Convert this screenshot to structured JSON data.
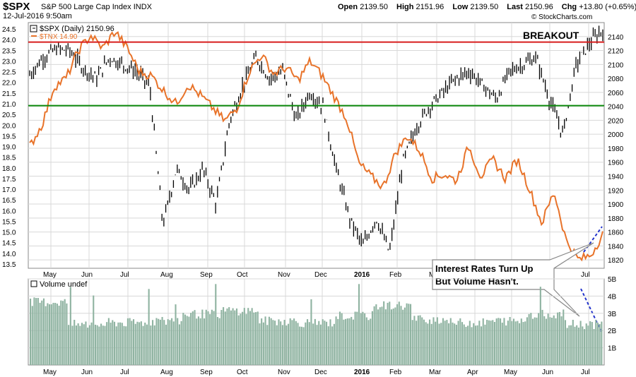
{
  "header": {
    "symbol": "$SPX",
    "name": "S&P 500 Large Cap Index",
    "exchange": "INDX",
    "datetime": "12-Jul-2016 9:50am",
    "open_label": "Open",
    "open": "2139.50",
    "high_label": "High",
    "high": "2151.96",
    "low_label": "Low",
    "low": "2139.50",
    "last_label": "Last",
    "last": "2150.96",
    "chg_label": "Chg",
    "chg": "+13.80 (+0.65%)",
    "up_arrow": "▲",
    "credit": "© StockCharts.com"
  },
  "colors": {
    "price": "#000000",
    "tnx": "#e8732a",
    "resistance": "#d81d1d",
    "support": "#0d8a0d",
    "volume": "#8fb3a1",
    "trend": "#2233cc",
    "grid": "#d8d8d8"
  },
  "annotations": {
    "breakout": "BREAKOUT",
    "callout_line1": "Interest Rates Turn Up",
    "callout_line2": "But Volume Hasn't."
  },
  "chart_data": [
    {
      "type": "line",
      "title": "$SPX (Daily) 2150.96",
      "legend": [
        {
          "name": "$SPX (Daily) 2150.96",
          "color": "#000000"
        },
        {
          "name": "$TNX 14.90",
          "color": "#e8732a"
        }
      ],
      "x_tick_labels": [
        "May",
        "Jun",
        "Jul",
        "Aug",
        "Sep",
        "Oct",
        "Nov",
        "Dec",
        "2016",
        "Feb",
        "Mar",
        "Apr",
        "May",
        "Jun",
        "Jul"
      ],
      "y_right_ticks": [
        "1820",
        "1840",
        "1860",
        "1880",
        "1900",
        "1920",
        "1940",
        "1960",
        "1980",
        "2000",
        "2020",
        "2040",
        "2060",
        "2080",
        "2100",
        "2120",
        "2140"
      ],
      "y_left_ticks": [
        "13.5",
        "14.0",
        "14.5",
        "15.0",
        "15.5",
        "16.0",
        "16.5",
        "17.0",
        "17.5",
        "18.0",
        "18.5",
        "19.0",
        "19.5",
        "20.0",
        "20.5",
        "21.0",
        "21.5",
        "22.0",
        "22.5",
        "23.0",
        "23.5",
        "24.0",
        "24.5"
      ],
      "y_right_range": [
        1808,
        2160
      ],
      "y_left_range": [
        13.3,
        24.8
      ],
      "horizontal_lines": [
        {
          "name": "resistance",
          "value": 2132
        },
        {
          "name": "support",
          "value": 2041
        }
      ],
      "series": [
        {
          "name": "$SPX (Daily) 2150.96",
          "axis": "right",
          "x": [
            "May",
            "Jun",
            "Jul",
            "Aug",
            "Sep",
            "Oct",
            "Nov",
            "Dec",
            "2016",
            "Feb",
            "Mar",
            "Apr",
            "May",
            "Jun",
            "Jul"
          ],
          "values_note_free": true,
          "points": [
            {
              "x": "Apr-2015",
              "y": 2085
            },
            {
              "x": "May",
              "y": 2110
            },
            {
              "x": "May",
              "y": 2122
            },
            {
              "x": "Jun",
              "y": 2120
            },
            {
              "x": "Jun",
              "y": 2095
            },
            {
              "x": "Jul",
              "y": 2080
            },
            {
              "x": "Jul",
              "y": 2110
            },
            {
              "x": "Jul",
              "y": 2100
            },
            {
              "x": "Aug",
              "y": 2090
            },
            {
              "x": "Aug",
              "y": 2070
            },
            {
              "x": "Aug",
              "y": 1870
            },
            {
              "x": "Sep",
              "y": 1950
            },
            {
              "x": "Sep",
              "y": 1920
            },
            {
              "x": "Sep",
              "y": 1950
            },
            {
              "x": "Oct",
              "y": 1900
            },
            {
              "x": "Oct",
              "y": 2020
            },
            {
              "x": "Oct",
              "y": 2070
            },
            {
              "x": "Nov",
              "y": 2110
            },
            {
              "x": "Nov",
              "y": 2080
            },
            {
              "x": "Dec",
              "y": 2090
            },
            {
              "x": "Dec",
              "y": 2020
            },
            {
              "x": "Dec",
              "y": 2060
            },
            {
              "x": "2016",
              "y": 2040
            },
            {
              "x": "2016",
              "y": 1950
            },
            {
              "x": "Jan",
              "y": 1880
            },
            {
              "x": "Feb",
              "y": 1840
            },
            {
              "x": "Feb",
              "y": 1880
            },
            {
              "x": "Feb",
              "y": 1830
            },
            {
              "x": "Mar",
              "y": 1960
            },
            {
              "x": "Mar",
              "y": 2010
            },
            {
              "x": "Mar",
              "y": 2040
            },
            {
              "x": "Apr",
              "y": 2060
            },
            {
              "x": "Apr",
              "y": 2080
            },
            {
              "x": "Apr",
              "y": 2090
            },
            {
              "x": "May",
              "y": 2070
            },
            {
              "x": "May",
              "y": 2050
            },
            {
              "x": "May",
              "y": 2090
            },
            {
              "x": "Jun",
              "y": 2100
            },
            {
              "x": "Jun",
              "y": 2110
            },
            {
              "x": "Jun",
              "y": 2050
            },
            {
              "x": "Jun",
              "y": 2000
            },
            {
              "x": "Jul",
              "y": 2100
            },
            {
              "x": "Jul",
              "y": 2130
            },
            {
              "x": "Jul",
              "y": 2150
            }
          ]
        },
        {
          "name": "$TNX 14.90",
          "axis": "left",
          "points": [
            {
              "x": "Apr-2015",
              "y": 19.0
            },
            {
              "x": "May",
              "y": 20.0
            },
            {
              "x": "May",
              "y": 21.8
            },
            {
              "x": "May",
              "y": 22.2
            },
            {
              "x": "Jun",
              "y": 23.5
            },
            {
              "x": "Jun",
              "y": 24.2
            },
            {
              "x": "Jun",
              "y": 23.6
            },
            {
              "x": "Jul",
              "y": 24.4
            },
            {
              "x": "Jul",
              "y": 23.6
            },
            {
              "x": "Jul",
              "y": 22.5
            },
            {
              "x": "Aug",
              "y": 22.3
            },
            {
              "x": "Aug",
              "y": 21.6
            },
            {
              "x": "Aug",
              "y": 21.0
            },
            {
              "x": "Sep",
              "y": 21.9
            },
            {
              "x": "Sep",
              "y": 21.4
            },
            {
              "x": "Oct",
              "y": 20.8
            },
            {
              "x": "Oct",
              "y": 20.2
            },
            {
              "x": "Oct",
              "y": 20.8
            },
            {
              "x": "Nov",
              "y": 22.5
            },
            {
              "x": "Nov",
              "y": 23.3
            },
            {
              "x": "Nov",
              "y": 22.4
            },
            {
              "x": "Dec",
              "y": 22.7
            },
            {
              "x": "Dec",
              "y": 22.1
            },
            {
              "x": "Dec",
              "y": 23.0
            },
            {
              "x": "2016",
              "y": 22.3
            },
            {
              "x": "2016",
              "y": 21.3
            },
            {
              "x": "Jan",
              "y": 20.3
            },
            {
              "x": "Feb",
              "y": 18.2
            },
            {
              "x": "Feb",
              "y": 17.6
            },
            {
              "x": "Feb",
              "y": 17.1
            },
            {
              "x": "Mar",
              "y": 18.7
            },
            {
              "x": "Mar",
              "y": 19.5
            },
            {
              "x": "Mar",
              "y": 18.8
            },
            {
              "x": "Apr",
              "y": 17.5
            },
            {
              "x": "Apr",
              "y": 17.7
            },
            {
              "x": "Apr",
              "y": 17.4
            },
            {
              "x": "May",
              "y": 19.0
            },
            {
              "x": "May",
              "y": 17.6
            },
            {
              "x": "May",
              "y": 18.4
            },
            {
              "x": "May",
              "y": 17.5
            },
            {
              "x": "Jun",
              "y": 18.4
            },
            {
              "x": "Jun",
              "y": 17.0
            },
            {
              "x": "Jun",
              "y": 15.4
            },
            {
              "x": "Jun",
              "y": 16.9
            },
            {
              "x": "Jun",
              "y": 14.6
            },
            {
              "x": "Jul",
              "y": 13.7
            },
            {
              "x": "Jul",
              "y": 13.9
            },
            {
              "x": "Jul",
              "y": 14.9
            }
          ]
        }
      ]
    },
    {
      "type": "bar",
      "title": "Volume undef",
      "y_ticks": [
        "1B",
        "2B",
        "3B",
        "4B",
        "5B"
      ],
      "ylim": [
        0,
        5
      ],
      "x_tick_labels": [
        "May",
        "Jun",
        "Jul",
        "Aug",
        "Sep",
        "Oct",
        "Nov",
        "Dec",
        "2016",
        "Feb",
        "Mar",
        "Apr",
        "May",
        "Jun",
        "Jul"
      ],
      "series": [
        {
          "name": "Volume undef",
          "approx_daily_level_billions_by_month": {
            "May": 2.3,
            "Jun": 2.4,
            "Jul": 2.5,
            "Aug": 2.9,
            "Sep": 3.1,
            "Oct": 2.5,
            "Nov": 2.4,
            "Dec": 2.8,
            "2016": 3.6,
            "Feb": 3.4,
            "Mar": 2.6,
            "Apr": 2.4,
            "May2016": 2.5,
            "Jun2016": 2.9,
            "Jul2016": 2.3
          }
        }
      ]
    }
  ]
}
